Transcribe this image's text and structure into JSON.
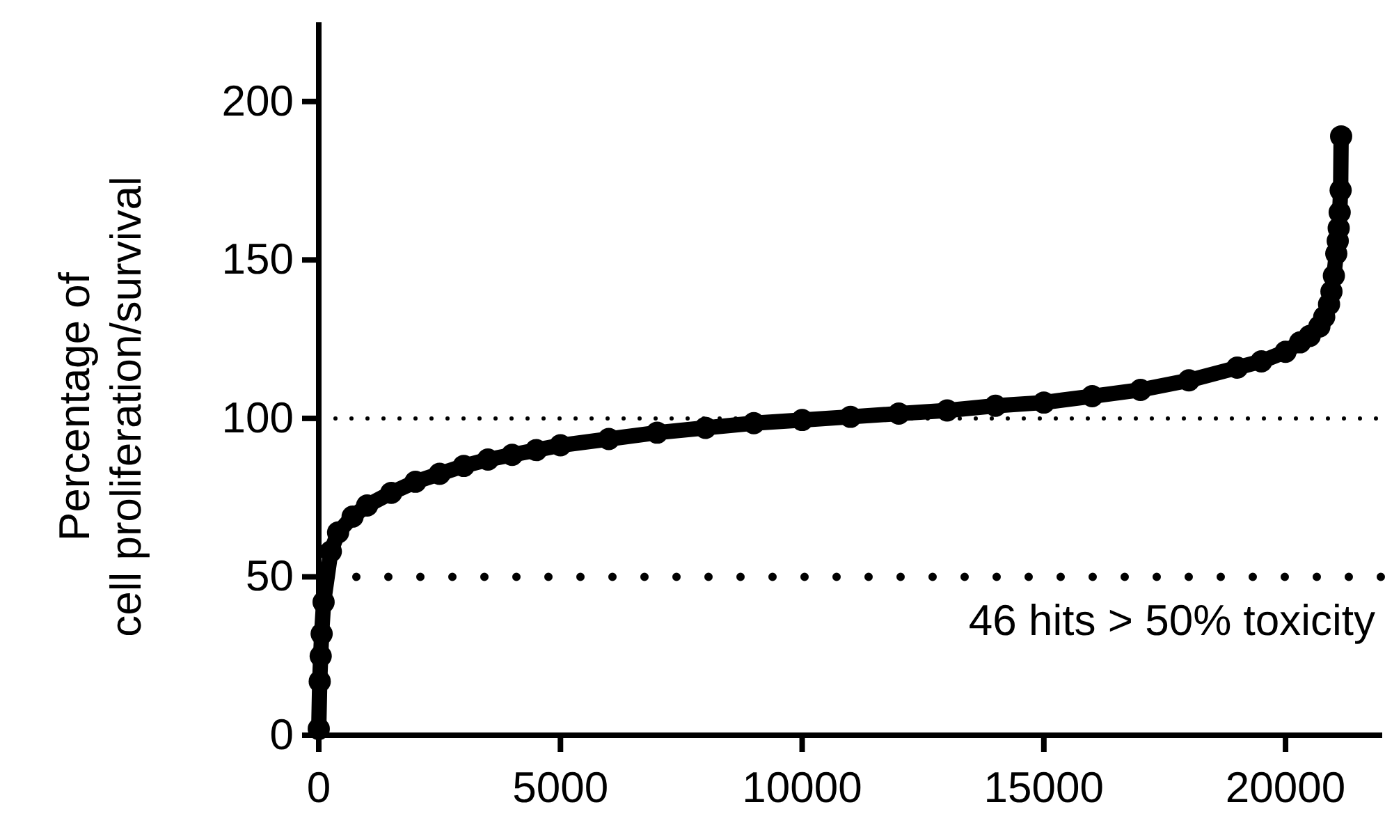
{
  "chart_data": {
    "type": "line",
    "ylabel": "Percentage of\ncell proliferation/survival",
    "xlim": [
      0,
      22000
    ],
    "xticks": [
      0,
      5000,
      10000,
      15000,
      20000
    ],
    "ylim": [
      0,
      225
    ],
    "yticks": [
      0,
      50,
      100,
      150,
      200
    ],
    "marker": "circle",
    "grid": false,
    "series": [
      {
        "color": "#000000",
        "x": [
          0,
          20,
          40,
          60,
          100,
          250,
          400,
          700,
          1000,
          1500,
          2000,
          2500,
          3000,
          3500,
          4000,
          4500,
          5000,
          6000,
          7000,
          8000,
          9000,
          10000,
          11000,
          12000,
          13000,
          14000,
          15000,
          16000,
          17000,
          18000,
          19000,
          19500,
          20000,
          20300,
          20500,
          20700,
          20800,
          20900,
          20950,
          21000,
          21050,
          21080,
          21100,
          21120,
          21140,
          21150
        ],
        "values": [
          2,
          17,
          25,
          32,
          42,
          58,
          64,
          69,
          72.5,
          76.5,
          80,
          82.5,
          85,
          87,
          88.5,
          90,
          91.5,
          93.5,
          95.5,
          97,
          98.5,
          99.5,
          100.5,
          101.5,
          102.5,
          104,
          105,
          107,
          109,
          112,
          116,
          118,
          121,
          124,
          126,
          129,
          132,
          136,
          140,
          145,
          152,
          156,
          160,
          165,
          172,
          189
        ]
      }
    ],
    "ref_lines": [
      {
        "axis": "y",
        "value": 100,
        "line_style": "dotted",
        "color": "#000000"
      },
      {
        "axis": "y",
        "value": 50,
        "line_style": "dotted",
        "color": "#000000"
      }
    ],
    "annotations": [
      "46 hits > 50% toxicity"
    ]
  }
}
